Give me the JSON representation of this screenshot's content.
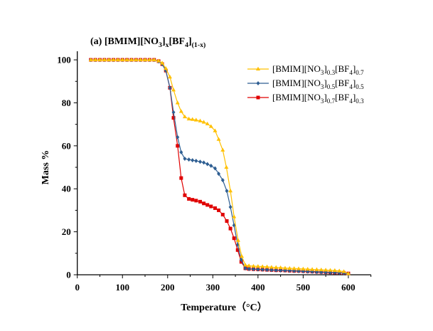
{
  "chart_data": {
    "type": "line",
    "title_parts": [
      [
        "(a) [BMIM][NO",
        false
      ],
      [
        "3",
        true
      ],
      [
        "]",
        false
      ],
      [
        "x",
        true
      ],
      [
        "[BF",
        false
      ],
      [
        "4",
        true
      ],
      [
        "]",
        false
      ],
      [
        "(1-x)",
        true
      ]
    ],
    "xlabel": "Temperature（°C）",
    "ylabel": "Mass %",
    "xlim": [
      0,
      650
    ],
    "ylim": [
      0,
      104
    ],
    "xticks": [
      0,
      100,
      200,
      300,
      400,
      500,
      600
    ],
    "xtick_labels": [
      "0",
      "100",
      "200",
      "300",
      "400",
      "500",
      "600"
    ],
    "yticks": [
      0,
      20,
      40,
      60,
      80,
      100
    ],
    "ytick_labels": [
      "0",
      "20",
      "40",
      "60",
      "80",
      "100"
    ],
    "grid": false,
    "legend_position": "top-right",
    "series": [
      {
        "name": "[BMIM][NO3]0.3[BF4]0.7",
        "label_parts": [
          [
            "[BMIM][NO",
            false
          ],
          [
            "3",
            true
          ],
          [
            "]",
            false
          ],
          [
            "0.3",
            true
          ],
          [
            "[BF",
            false
          ],
          [
            "4",
            true
          ],
          [
            "]",
            false
          ],
          [
            "0.7",
            true
          ]
        ],
        "color": "#FFC000",
        "marker": "triangle",
        "x": [
          30,
          40,
          50,
          60,
          70,
          80,
          90,
          100,
          110,
          120,
          130,
          140,
          150,
          160,
          170,
          180,
          188,
          196,
          205,
          213,
          222,
          230,
          238,
          247,
          255,
          263,
          272,
          280,
          288,
          296,
          305,
          313,
          322,
          330,
          339,
          347,
          356,
          364,
          372,
          380,
          390,
          400,
          410,
          420,
          430,
          440,
          450,
          460,
          470,
          480,
          490,
          500,
          510,
          520,
          530,
          540,
          550,
          560,
          570,
          580,
          590,
          600
        ],
        "y": [
          100,
          100,
          100,
          100,
          100,
          100,
          100,
          100,
          100,
          100,
          100,
          100,
          100,
          100,
          100,
          99.5,
          98.5,
          96,
          92,
          86,
          80,
          76,
          73.5,
          72.5,
          72.3,
          72,
          71.6,
          71,
          70.2,
          69,
          67,
          63,
          58,
          50,
          39,
          27,
          16,
          8.6,
          4.5,
          4.2,
          4,
          3.9,
          3.8,
          3.7,
          3.5,
          3.4,
          3.3,
          3.1,
          3,
          2.9,
          2.8,
          2.7,
          2.6,
          2.5,
          2.4,
          2.3,
          2.2,
          2.1,
          2,
          1.8,
          1.5,
          0.5
        ]
      },
      {
        "name": "[BMIM][NO3]0.5[BF4]0.5",
        "label_parts": [
          [
            "[BMIM][NO",
            false
          ],
          [
            "3",
            true
          ],
          [
            "]",
            false
          ],
          [
            "0.5",
            true
          ],
          [
            "[BF",
            false
          ],
          [
            "4",
            true
          ],
          [
            "]",
            false
          ],
          [
            "0.5",
            true
          ]
        ],
        "color": "#2E5E92",
        "marker": "diamond",
        "x": [
          30,
          40,
          50,
          60,
          70,
          80,
          90,
          100,
          110,
          120,
          130,
          140,
          150,
          160,
          170,
          180,
          188,
          196,
          205,
          213,
          222,
          230,
          238,
          247,
          255,
          263,
          272,
          280,
          288,
          296,
          305,
          313,
          322,
          331,
          339,
          347,
          355,
          363,
          372,
          380,
          390,
          400,
          410,
          420,
          430,
          440,
          450,
          460,
          470,
          480,
          490,
          500,
          510,
          520,
          530,
          540,
          550,
          560,
          570,
          580,
          590,
          600
        ],
        "y": [
          100,
          100,
          100,
          100,
          100,
          100,
          100,
          100,
          100,
          100,
          100,
          100,
          100,
          100,
          100,
          99.3,
          98,
          95,
          87,
          75.6,
          64,
          57,
          54,
          53.6,
          53.3,
          53,
          52.6,
          52.2,
          51.5,
          50.7,
          49.5,
          47,
          44,
          39,
          31.5,
          23,
          14,
          7,
          3,
          2.7,
          2.6,
          2.5,
          2.4,
          2.3,
          2.2,
          2.1,
          2,
          2,
          1.9,
          1.8,
          1.7,
          1.6,
          1.5,
          1.4,
          1.3,
          1.2,
          1.1,
          1,
          1,
          0.9,
          0.8,
          0.5
        ]
      },
      {
        "name": "[BMIM][NO3]0.7[BF4]0.3",
        "label_parts": [
          [
            "[BMIM][NO",
            false
          ],
          [
            "3",
            true
          ],
          [
            "]",
            false
          ],
          [
            "0.7",
            true
          ],
          [
            "[BF",
            false
          ],
          [
            "4",
            true
          ],
          [
            "]",
            false
          ],
          [
            "0.3",
            true
          ]
        ],
        "color": "#E00000",
        "marker": "square",
        "x": [
          30,
          40,
          50,
          60,
          70,
          80,
          90,
          100,
          110,
          120,
          130,
          140,
          150,
          160,
          170,
          180,
          188,
          196,
          205,
          213,
          222,
          230,
          238,
          247,
          255,
          263,
          272,
          280,
          288,
          296,
          305,
          313,
          322,
          331,
          339,
          347,
          355,
          363,
          372,
          380,
          390,
          400,
          410,
          420,
          430,
          440,
          450,
          460,
          470,
          480,
          490,
          500,
          510,
          520,
          530,
          540,
          550,
          560,
          570,
          580,
          590,
          600
        ],
        "y": [
          100,
          100,
          100,
          100,
          100,
          100,
          100,
          100,
          100,
          100,
          100,
          100,
          100,
          100,
          100,
          99.4,
          98,
          95,
          87,
          73,
          60,
          45,
          37,
          35.3,
          34.9,
          34.5,
          34,
          33.2,
          32.5,
          31.8,
          31,
          30,
          28,
          25,
          21.5,
          17,
          11.5,
          6,
          3,
          2.7,
          2.6,
          2.5,
          2.4,
          2.3,
          2.2,
          2.1,
          2.1,
          2,
          1.9,
          1.8,
          1.8,
          1.7,
          1.6,
          1.5,
          1.4,
          1.3,
          1.2,
          1.1,
          1,
          1,
          0.9,
          0.6
        ]
      }
    ]
  }
}
